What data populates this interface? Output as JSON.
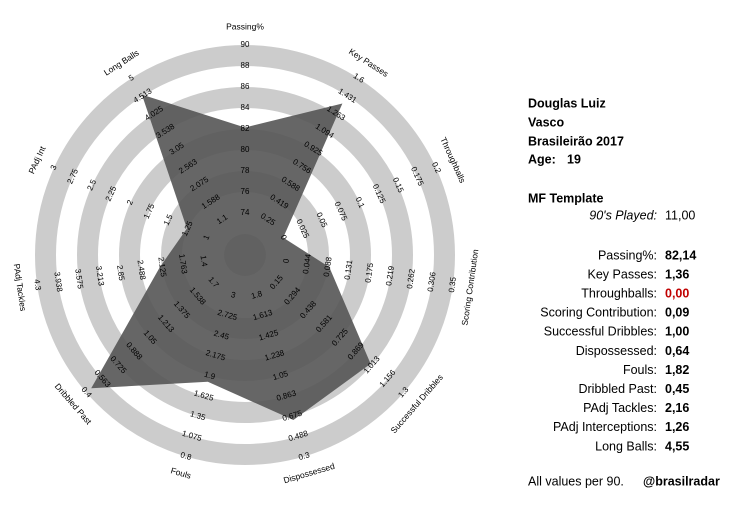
{
  "chart_data": {
    "type": "radar",
    "categories": [
      "Passing%",
      "Key Passes",
      "Throughballs",
      "Scoring Contribution",
      "Successful Dribbles",
      "Dispossessed",
      "Fouls",
      "Dribbled Past",
      "PAdj Tackles",
      "PAdj Int",
      "Long Balls"
    ],
    "ticks": [
      [
        74,
        76,
        78,
        80,
        82,
        84,
        86,
        88,
        90
      ],
      [
        0.25,
        0.419,
        0.588,
        0.756,
        0.925,
        1.094,
        1.263,
        1.431,
        1.6
      ],
      [
        0,
        0.025,
        0.05,
        0.075,
        0.1,
        0.125,
        0.15,
        0.175,
        0.2
      ],
      [
        0,
        0.044,
        0.088,
        0.131,
        0.175,
        0.219,
        0.262,
        0.306,
        0.35
      ],
      [
        0.15,
        0.294,
        0.438,
        0.581,
        0.725,
        0.869,
        1.013,
        1.156,
        1.3
      ],
      [
        1.8,
        1.613,
        1.425,
        1.238,
        1.05,
        0.863,
        0.675,
        0.488,
        0.3
      ],
      [
        3,
        2.725,
        2.45,
        2.175,
        1.9,
        1.625,
        1.35,
        1.075,
        0.8
      ],
      [
        1.7,
        1.538,
        1.375,
        1.213,
        1.05,
        0.888,
        0.725,
        0.563,
        0.4
      ],
      [
        1.4,
        1.763,
        2.125,
        2.488,
        2.85,
        3.213,
        3.575,
        3.938,
        4.3
      ],
      [
        1,
        1.25,
        1.5,
        1.75,
        2,
        2.25,
        2.5,
        2.75,
        3
      ],
      [
        1.1,
        1.588,
        2.075,
        2.563,
        3.05,
        3.538,
        4.025,
        4.513,
        5
      ]
    ],
    "values": [
      82.14,
      1.36,
      0.0,
      0.09,
      1.0,
      0.64,
      1.82,
      0.45,
      2.16,
      1.26,
      4.55
    ],
    "value_labels": [
      "82,14",
      "1,36",
      "0,00",
      "0,09",
      "1,00",
      "0,64",
      "1,82",
      "0,45",
      "2,16",
      "1,26",
      "4,55"
    ],
    "color": "#555555",
    "ring_color": "#cccccc"
  },
  "panel": {
    "player": "Douglas Luiz",
    "team": "Vasco",
    "competition": "Brasileirão 2017",
    "age_label": "Age:",
    "age": 19,
    "template": "MF Template",
    "played_label": "90's Played:",
    "played": "11,00",
    "stat_labels": [
      "Passing%:",
      "Key Passes:",
      "Throughballs:",
      "Scoring Contribution:",
      "Successful Dribbles:",
      "Dispossessed:",
      "Fouls:",
      "Dribbled Past:",
      "PAdj Tackles:",
      "PAdj Interceptions:",
      "Long Balls:"
    ],
    "value_colors": [
      "#000000",
      "#000000",
      "#c00000",
      "#000000",
      "#000000",
      "#000000",
      "#000000",
      "#000000",
      "#000000",
      "#000000",
      "#000000"
    ]
  },
  "footer": {
    "note": "All values per 90.",
    "credit": "@brasilradar"
  }
}
